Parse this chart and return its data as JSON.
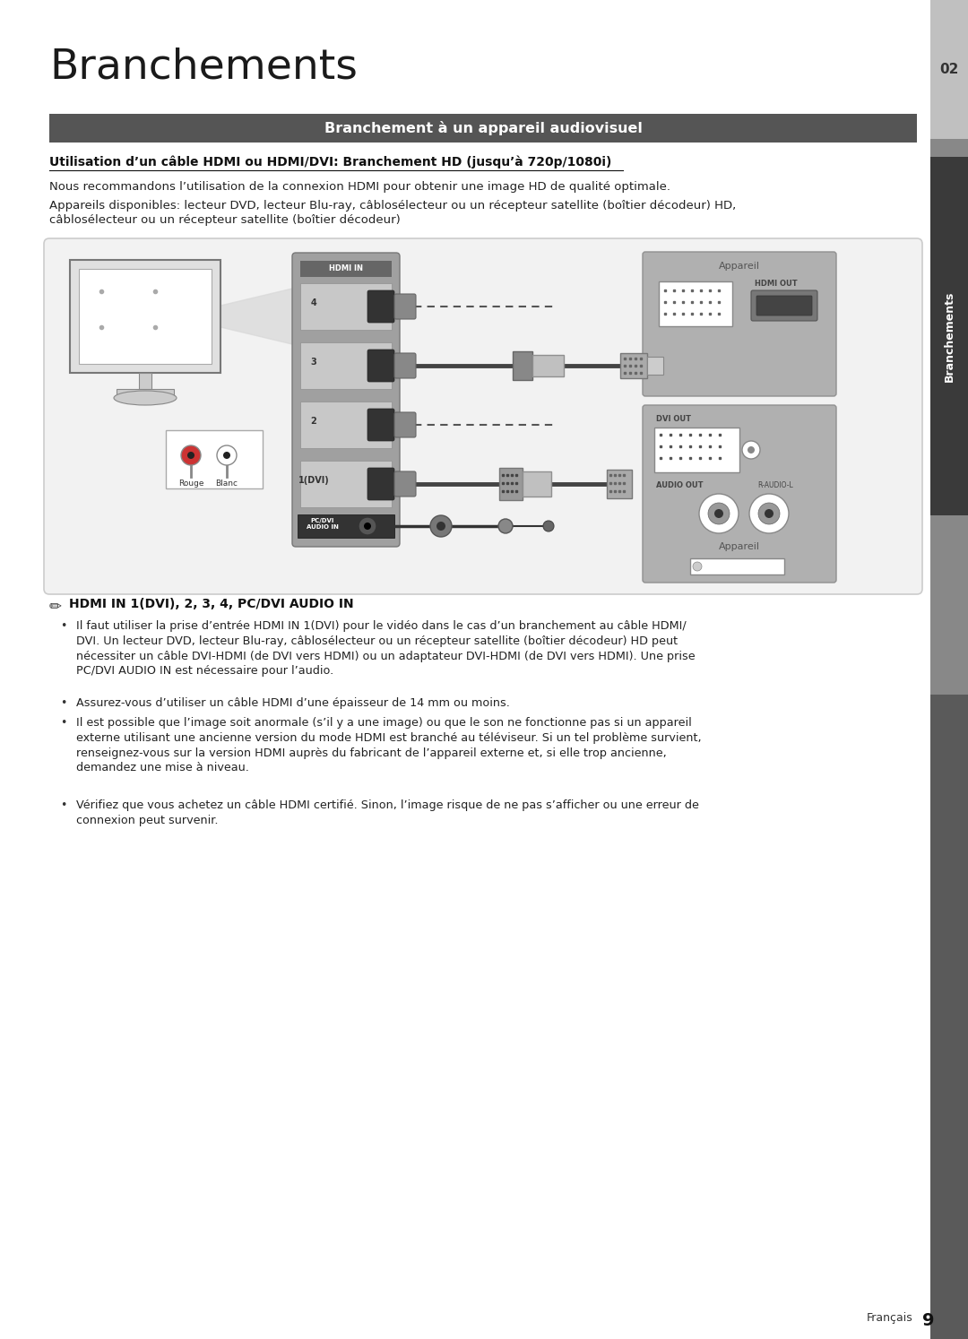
{
  "title": "Branchements",
  "section_header": "Branchement à un appareil audiovisuel",
  "subsection_title": "Utilisation d’un câble HDMI ou HDMI/DVI: Branchement HD (jusqu’à 720p/1080i)",
  "para1": "Nous recommandons l’utilisation de la connexion HDMI pour obtenir une image HD de qualité optimale.",
  "para2": "Appareils disponibles: lecteur DVD, lecteur Blu-ray, câblosélecteur ou un récepteur satellite (boîtier décodeur) HD,\ncâblosélecteur ou un récepteur satellite (boîtier décodeur)",
  "note_header": "HDMI IN 1(DVI), 2, 3, 4, PC/DVI AUDIO IN",
  "bullet1": "Il faut utiliser la prise d’entrée HDMI IN 1(DVI) pour le vidéo dans le cas d’un branchement au câble HDMI/\nDVI. Un lecteur DVD, lecteur Blu-ray, câblosélecteur ou un récepteur satellite (boîtier décodeur) HD peut\nnécessiter un câble DVI-HDMI (de DVI vers HDMI) ou un adaptateur DVI-HDMI (de DVI vers HDMI). Une prise\nPC/DVI AUDIO IN est nécessaire pour l’audio.",
  "bullet2": "Assurez-vous d’utiliser un câble HDMI d’une épaisseur de 14 mm ou moins.",
  "bullet3": "Il est possible que l’image soit anormale (s’il y a une image) ou que le son ne fonctionne pas si un appareil\nexterne utilisant une ancienne version du mode HDMI est branché au téléviseur. Si un tel problème survient,\nrenseignez-vous sur la version HDMI auprès du fabricant de l’appareil externe et, si elle trop ancienne,\ndemandez une mise à niveau.",
  "bullet4": "Vérifiez que vous achetez un câble HDMI certifié. Sinon, l’image risque de ne pas s’afficher ou une erreur de\nconnexion peut survenir.",
  "page_number": "9",
  "page_lang": "Français",
  "sidebar_text": "Branchements",
  "sidebar_num": "02"
}
